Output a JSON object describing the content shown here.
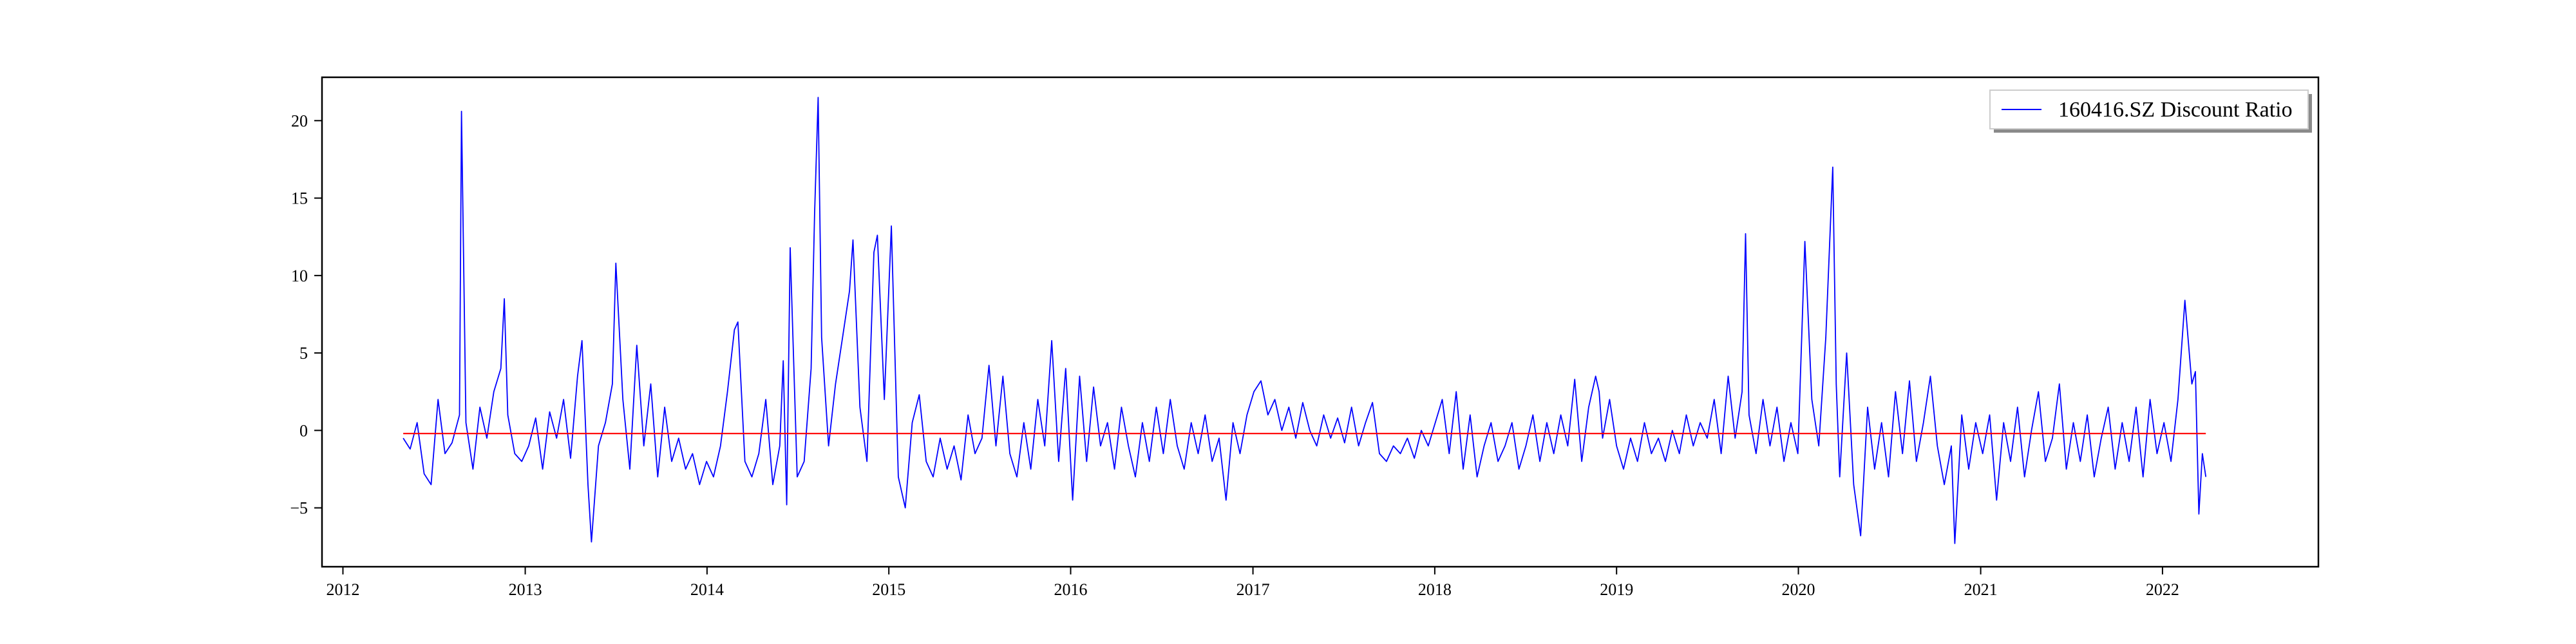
{
  "chart_data": {
    "type": "line",
    "title": "",
    "xlabel": "",
    "ylabel": "",
    "x_range": [
      "2011-11-20",
      "2022-11-10"
    ],
    "ylim": [
      -8.8,
      22.8
    ],
    "x_ticks": [
      "2012",
      "2013",
      "2014",
      "2015",
      "2016",
      "2017",
      "2018",
      "2019",
      "2020",
      "2021",
      "2022"
    ],
    "y_ticks": [
      -5,
      0,
      5,
      10,
      15,
      20
    ],
    "grid": false,
    "legend_position": "top-right",
    "series": [
      {
        "name": "160416.SZ Discount Ratio",
        "color": "#0000ff",
        "points": [
          [
            "2012-05-01",
            -0.5
          ],
          [
            "2012-05-15",
            -1.2
          ],
          [
            "2012-05-29",
            0.5
          ],
          [
            "2012-06-12",
            -2.8
          ],
          [
            "2012-06-26",
            -3.5
          ],
          [
            "2012-07-10",
            2.0
          ],
          [
            "2012-07-24",
            -1.5
          ],
          [
            "2012-08-07",
            -0.8
          ],
          [
            "2012-08-22",
            1.0
          ],
          [
            "2012-08-26",
            20.6
          ],
          [
            "2012-09-04",
            0.5
          ],
          [
            "2012-09-18",
            -2.5
          ],
          [
            "2012-10-02",
            1.5
          ],
          [
            "2012-10-16",
            -0.5
          ],
          [
            "2012-10-30",
            2.5
          ],
          [
            "2012-11-13",
            4.0
          ],
          [
            "2012-11-20",
            8.5
          ],
          [
            "2012-11-27",
            1.0
          ],
          [
            "2012-12-11",
            -1.5
          ],
          [
            "2012-12-25",
            -2.0
          ],
          [
            "2013-01-08",
            -1.0
          ],
          [
            "2013-01-22",
            0.8
          ],
          [
            "2013-02-05",
            -2.5
          ],
          [
            "2013-02-19",
            1.2
          ],
          [
            "2013-03-05",
            -0.5
          ],
          [
            "2013-03-19",
            2.0
          ],
          [
            "2013-04-02",
            -1.8
          ],
          [
            "2013-04-16",
            3.5
          ],
          [
            "2013-04-25",
            5.8
          ],
          [
            "2013-05-07",
            -3.5
          ],
          [
            "2013-05-14",
            -7.2
          ],
          [
            "2013-05-28",
            -1.0
          ],
          [
            "2013-06-11",
            0.5
          ],
          [
            "2013-06-25",
            3.0
          ],
          [
            "2013-07-02",
            10.8
          ],
          [
            "2013-07-16",
            2.0
          ],
          [
            "2013-07-30",
            -2.5
          ],
          [
            "2013-08-13",
            5.5
          ],
          [
            "2013-08-27",
            -1.0
          ],
          [
            "2013-09-10",
            3.0
          ],
          [
            "2013-09-24",
            -3.0
          ],
          [
            "2013-10-08",
            1.5
          ],
          [
            "2013-10-22",
            -2.0
          ],
          [
            "2013-11-05",
            -0.5
          ],
          [
            "2013-11-19",
            -2.5
          ],
          [
            "2013-12-03",
            -1.5
          ],
          [
            "2013-12-17",
            -3.5
          ],
          [
            "2013-12-31",
            -2.0
          ],
          [
            "2014-01-14",
            -3.0
          ],
          [
            "2014-01-28",
            -1.0
          ],
          [
            "2014-02-11",
            2.5
          ],
          [
            "2014-02-25",
            6.5
          ],
          [
            "2014-03-04",
            7.0
          ],
          [
            "2014-03-18",
            -2.0
          ],
          [
            "2014-04-01",
            -3.0
          ],
          [
            "2014-04-15",
            -1.5
          ],
          [
            "2014-04-29",
            2.0
          ],
          [
            "2014-05-13",
            -3.5
          ],
          [
            "2014-05-27",
            -1.0
          ],
          [
            "2014-06-03",
            4.5
          ],
          [
            "2014-06-10",
            -4.8
          ],
          [
            "2014-06-17",
            11.8
          ],
          [
            "2014-07-01",
            -3.0
          ],
          [
            "2014-07-15",
            -2.0
          ],
          [
            "2014-07-29",
            4.0
          ],
          [
            "2014-08-05",
            14.0
          ],
          [
            "2014-08-12",
            21.5
          ],
          [
            "2014-08-19",
            6.0
          ],
          [
            "2014-09-02",
            -1.0
          ],
          [
            "2014-09-16",
            3.0
          ],
          [
            "2014-09-30",
            6.0
          ],
          [
            "2014-10-14",
            9.0
          ],
          [
            "2014-10-21",
            12.3
          ],
          [
            "2014-11-04",
            1.5
          ],
          [
            "2014-11-18",
            -2.0
          ],
          [
            "2014-12-02",
            11.5
          ],
          [
            "2014-12-09",
            12.6
          ],
          [
            "2014-12-23",
            2.0
          ],
          [
            "2015-01-06",
            13.2
          ],
          [
            "2015-01-20",
            -3.0
          ],
          [
            "2015-02-03",
            -5.0
          ],
          [
            "2015-02-17",
            0.5
          ],
          [
            "2015-03-03",
            2.3
          ],
          [
            "2015-03-17",
            -2.0
          ],
          [
            "2015-03-31",
            -3.0
          ],
          [
            "2015-04-14",
            -0.5
          ],
          [
            "2015-04-28",
            -2.5
          ],
          [
            "2015-05-12",
            -1.0
          ],
          [
            "2015-05-26",
            -3.2
          ],
          [
            "2015-06-09",
            1.0
          ],
          [
            "2015-06-23",
            -1.5
          ],
          [
            "2015-07-07",
            -0.5
          ],
          [
            "2015-07-21",
            4.2
          ],
          [
            "2015-08-04",
            -1.0
          ],
          [
            "2015-08-18",
            3.5
          ],
          [
            "2015-09-01",
            -1.5
          ],
          [
            "2015-09-15",
            -3.0
          ],
          [
            "2015-09-29",
            0.5
          ],
          [
            "2015-10-13",
            -2.5
          ],
          [
            "2015-10-27",
            2.0
          ],
          [
            "2015-11-10",
            -1.0
          ],
          [
            "2015-11-24",
            5.8
          ],
          [
            "2015-12-08",
            -2.0
          ],
          [
            "2015-12-22",
            4.0
          ],
          [
            "2016-01-05",
            -4.5
          ],
          [
            "2016-01-19",
            3.5
          ],
          [
            "2016-02-02",
            -2.0
          ],
          [
            "2016-02-16",
            2.8
          ],
          [
            "2016-03-01",
            -1.0
          ],
          [
            "2016-03-15",
            0.5
          ],
          [
            "2016-03-29",
            -2.5
          ],
          [
            "2016-04-12",
            1.5
          ],
          [
            "2016-04-26",
            -1.0
          ],
          [
            "2016-05-10",
            -3.0
          ],
          [
            "2016-05-24",
            0.5
          ],
          [
            "2016-06-07",
            -2.0
          ],
          [
            "2016-06-21",
            1.5
          ],
          [
            "2016-07-05",
            -1.5
          ],
          [
            "2016-07-19",
            2.0
          ],
          [
            "2016-08-02",
            -1.0
          ],
          [
            "2016-08-16",
            -2.5
          ],
          [
            "2016-08-30",
            0.5
          ],
          [
            "2016-09-13",
            -1.5
          ],
          [
            "2016-09-27",
            1.0
          ],
          [
            "2016-10-11",
            -2.0
          ],
          [
            "2016-10-25",
            -0.5
          ],
          [
            "2016-11-08",
            -4.5
          ],
          [
            "2016-11-22",
            0.5
          ],
          [
            "2016-12-06",
            -1.5
          ],
          [
            "2016-12-20",
            1.0
          ],
          [
            "2017-01-03",
            2.5
          ],
          [
            "2017-01-17",
            3.2
          ],
          [
            "2017-01-31",
            1.0
          ],
          [
            "2017-02-14",
            2.0
          ],
          [
            "2017-02-28",
            0.0
          ],
          [
            "2017-03-14",
            1.5
          ],
          [
            "2017-03-28",
            -0.5
          ],
          [
            "2017-04-11",
            1.8
          ],
          [
            "2017-04-25",
            0.0
          ],
          [
            "2017-05-09",
            -1.0
          ],
          [
            "2017-05-23",
            1.0
          ],
          [
            "2017-06-06",
            -0.5
          ],
          [
            "2017-06-20",
            0.8
          ],
          [
            "2017-07-04",
            -0.8
          ],
          [
            "2017-07-18",
            1.5
          ],
          [
            "2017-08-01",
            -1.0
          ],
          [
            "2017-08-15",
            0.5
          ],
          [
            "2017-08-29",
            1.8
          ],
          [
            "2017-09-12",
            -1.5
          ],
          [
            "2017-09-26",
            -2.0
          ],
          [
            "2017-10-10",
            -1.0
          ],
          [
            "2017-10-24",
            -1.5
          ],
          [
            "2017-11-07",
            -0.5
          ],
          [
            "2017-11-21",
            -1.8
          ],
          [
            "2017-12-05",
            0.0
          ],
          [
            "2017-12-19",
            -1.0
          ],
          [
            "2018-01-02",
            0.5
          ],
          [
            "2018-01-16",
            2.0
          ],
          [
            "2018-01-30",
            -1.5
          ],
          [
            "2018-02-13",
            2.5
          ],
          [
            "2018-02-27",
            -2.5
          ],
          [
            "2018-03-13",
            1.0
          ],
          [
            "2018-03-27",
            -3.0
          ],
          [
            "2018-04-10",
            -1.0
          ],
          [
            "2018-04-24",
            0.5
          ],
          [
            "2018-05-08",
            -2.0
          ],
          [
            "2018-05-22",
            -1.0
          ],
          [
            "2018-06-05",
            0.5
          ],
          [
            "2018-06-19",
            -2.5
          ],
          [
            "2018-07-03",
            -1.0
          ],
          [
            "2018-07-17",
            1.0
          ],
          [
            "2018-07-31",
            -2.0
          ],
          [
            "2018-08-14",
            0.5
          ],
          [
            "2018-08-28",
            -1.5
          ],
          [
            "2018-09-11",
            1.0
          ],
          [
            "2018-09-25",
            -1.0
          ],
          [
            "2018-10-09",
            3.3
          ],
          [
            "2018-10-23",
            -2.0
          ],
          [
            "2018-11-06",
            1.5
          ],
          [
            "2018-11-20",
            3.5
          ],
          [
            "2018-11-27",
            2.5
          ],
          [
            "2018-12-04",
            -0.5
          ],
          [
            "2018-12-18",
            2.0
          ],
          [
            "2019-01-01",
            -1.0
          ],
          [
            "2019-01-15",
            -2.5
          ],
          [
            "2019-01-29",
            -0.5
          ],
          [
            "2019-02-12",
            -2.0
          ],
          [
            "2019-02-26",
            0.5
          ],
          [
            "2019-03-12",
            -1.5
          ],
          [
            "2019-03-26",
            -0.5
          ],
          [
            "2019-04-09",
            -2.0
          ],
          [
            "2019-04-23",
            0.0
          ],
          [
            "2019-05-07",
            -1.5
          ],
          [
            "2019-05-21",
            1.0
          ],
          [
            "2019-06-04",
            -1.0
          ],
          [
            "2019-06-18",
            0.5
          ],
          [
            "2019-07-02",
            -0.5
          ],
          [
            "2019-07-16",
            2.0
          ],
          [
            "2019-07-30",
            -1.5
          ],
          [
            "2019-08-13",
            3.5
          ],
          [
            "2019-08-27",
            -0.5
          ],
          [
            "2019-09-10",
            2.5
          ],
          [
            "2019-09-17",
            12.7
          ],
          [
            "2019-09-24",
            1.0
          ],
          [
            "2019-10-08",
            -1.5
          ],
          [
            "2019-10-22",
            2.0
          ],
          [
            "2019-11-05",
            -1.0
          ],
          [
            "2019-11-19",
            1.5
          ],
          [
            "2019-12-03",
            -2.0
          ],
          [
            "2019-12-17",
            0.5
          ],
          [
            "2019-12-31",
            -1.5
          ],
          [
            "2020-01-14",
            12.2
          ],
          [
            "2020-01-28",
            2.0
          ],
          [
            "2020-02-11",
            -1.0
          ],
          [
            "2020-02-25",
            6.0
          ],
          [
            "2020-03-10",
            17.0
          ],
          [
            "2020-03-17",
            3.0
          ],
          [
            "2020-03-24",
            -3.0
          ],
          [
            "2020-04-07",
            5.0
          ],
          [
            "2020-04-21",
            -3.5
          ],
          [
            "2020-05-05",
            -6.8
          ],
          [
            "2020-05-19",
            1.5
          ],
          [
            "2020-06-02",
            -2.5
          ],
          [
            "2020-06-16",
            0.5
          ],
          [
            "2020-06-30",
            -3.0
          ],
          [
            "2020-07-14",
            2.5
          ],
          [
            "2020-07-28",
            -1.5
          ],
          [
            "2020-08-11",
            3.2
          ],
          [
            "2020-08-25",
            -2.0
          ],
          [
            "2020-09-08",
            0.5
          ],
          [
            "2020-09-22",
            3.5
          ],
          [
            "2020-10-06",
            -1.0
          ],
          [
            "2020-10-20",
            -3.5
          ],
          [
            "2020-11-03",
            -1.0
          ],
          [
            "2020-11-10",
            -7.3
          ],
          [
            "2020-11-24",
            1.0
          ],
          [
            "2020-12-08",
            -2.5
          ],
          [
            "2020-12-22",
            0.5
          ],
          [
            "2021-01-05",
            -1.5
          ],
          [
            "2021-01-19",
            1.0
          ],
          [
            "2021-02-02",
            -4.5
          ],
          [
            "2021-02-16",
            0.5
          ],
          [
            "2021-03-02",
            -2.0
          ],
          [
            "2021-03-16",
            1.5
          ],
          [
            "2021-03-30",
            -3.0
          ],
          [
            "2021-04-13",
            0.0
          ],
          [
            "2021-04-27",
            2.5
          ],
          [
            "2021-05-11",
            -2.0
          ],
          [
            "2021-05-25",
            -0.5
          ],
          [
            "2021-06-08",
            3.0
          ],
          [
            "2021-06-22",
            -2.5
          ],
          [
            "2021-07-06",
            0.5
          ],
          [
            "2021-07-20",
            -2.0
          ],
          [
            "2021-08-03",
            1.0
          ],
          [
            "2021-08-17",
            -3.0
          ],
          [
            "2021-08-31",
            -0.5
          ],
          [
            "2021-09-14",
            1.5
          ],
          [
            "2021-09-28",
            -2.5
          ],
          [
            "2021-10-12",
            0.5
          ],
          [
            "2021-10-26",
            -2.0
          ],
          [
            "2021-11-09",
            1.5
          ],
          [
            "2021-11-23",
            -3.0
          ],
          [
            "2021-12-07",
            2.0
          ],
          [
            "2021-12-21",
            -1.5
          ],
          [
            "2022-01-04",
            0.5
          ],
          [
            "2022-01-18",
            -2.0
          ],
          [
            "2022-02-01",
            2.0
          ],
          [
            "2022-02-15",
            8.4
          ],
          [
            "2022-03-01",
            3.0
          ],
          [
            "2022-03-08",
            3.8
          ],
          [
            "2022-03-15",
            -5.4
          ],
          [
            "2022-03-22",
            -1.5
          ],
          [
            "2022-03-29",
            -3.0
          ]
        ]
      },
      {
        "name": "",
        "color": "#ff0000",
        "points": [
          [
            "2012-05-01",
            -0.2
          ],
          [
            "2022-03-29",
            -0.2
          ]
        ]
      }
    ]
  }
}
